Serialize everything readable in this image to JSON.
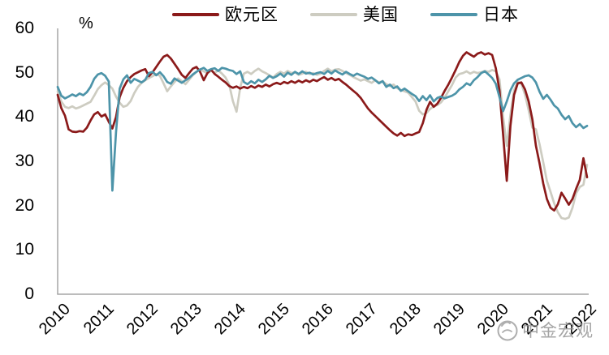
{
  "chart": {
    "unit_label": "%",
    "background": "#ffffff",
    "axis_color": "#a6a6a6"
  },
  "legend": {
    "items": [
      {
        "label": "欧元区",
        "color": "#8B1A1A"
      },
      {
        "label": "美国",
        "color": "#CDCCC1"
      },
      {
        "label": "日本",
        "color": "#4D94A9"
      }
    ]
  },
  "y_axis": {
    "unit": "%",
    "min": 0,
    "max": 60,
    "ticks": [
      "0",
      "10",
      "20",
      "30",
      "40",
      "50",
      "60"
    ]
  },
  "x_axis": {
    "ticks": [
      "2010",
      "2011",
      "2012",
      "2013",
      "2014",
      "2015",
      "2016",
      "2017",
      "2018",
      "2019",
      "2020",
      "2021",
      "2022"
    ]
  },
  "watermark": {
    "text": "中金宏观"
  },
  "chart_data": {
    "type": "line",
    "title": "",
    "xlabel": "",
    "ylabel": "%",
    "ylim": [
      0,
      60
    ],
    "grid": false,
    "legend_position": "top",
    "frequency": "monthly",
    "x_start": "2010-01",
    "x_end": "2022-02",
    "categories": [
      "2010",
      "2011",
      "2012",
      "2013",
      "2014",
      "2015",
      "2016",
      "2017",
      "2018",
      "2019",
      "2020",
      "2021",
      "2022"
    ],
    "series": [
      {
        "name": "欧元区",
        "color": "#8B1A1A",
        "values": [
          45.0,
          42.0,
          40.3,
          37.2,
          36.7,
          36.6,
          36.8,
          36.7,
          37.6,
          39.2,
          40.6,
          41.1,
          40.1,
          40.6,
          38.9,
          37.4,
          40.0,
          44.5,
          46.6,
          48.1,
          49.0,
          49.7,
          50.1,
          50.5,
          50.8,
          49.2,
          50.1,
          51.3,
          52.5,
          53.6,
          54.0,
          53.2,
          52.0,
          50.8,
          49.5,
          48.8,
          49.9,
          50.9,
          51.3,
          50.2,
          48.3,
          49.9,
          50.7,
          49.7,
          49.1,
          48.4,
          47.8,
          47.0,
          46.6,
          46.9,
          46.4,
          46.8,
          46.5,
          47.0,
          46.6,
          47.1,
          46.8,
          47.3,
          46.9,
          47.4,
          47.7,
          47.4,
          47.9,
          47.6,
          48.1,
          47.7,
          48.2,
          47.8,
          48.3,
          47.9,
          48.4,
          48.1,
          48.6,
          49.0,
          48.4,
          48.8,
          48.3,
          48.6,
          47.9,
          47.3,
          46.6,
          45.9,
          45.2,
          44.3,
          43.1,
          41.9,
          41.0,
          40.2,
          39.4,
          38.6,
          37.8,
          37.0,
          36.3,
          35.8,
          36.4,
          35.7,
          36.1,
          35.9,
          36.3,
          36.6,
          38.6,
          41.6,
          43.4,
          42.3,
          43.0,
          44.3,
          45.9,
          47.3,
          48.9,
          50.6,
          52.4,
          53.8,
          54.6,
          54.1,
          53.6,
          54.3,
          54.6,
          54.1,
          54.4,
          54.0,
          51.0,
          46.0,
          36.0,
          25.6,
          38.0,
          45.0,
          47.6,
          47.8,
          46.2,
          43.5,
          39.5,
          33.5,
          29.5,
          25.0,
          21.5,
          19.5,
          18.9,
          20.3,
          22.9,
          21.6,
          20.2,
          21.5,
          23.8,
          25.8,
          30.7,
          26.4
        ]
      },
      {
        "name": "美国",
        "color": "#CDCCC1",
        "values": [
          45.8,
          43.5,
          42.3,
          42.0,
          42.4,
          41.9,
          42.2,
          42.6,
          43.0,
          43.4,
          44.8,
          46.3,
          47.2,
          47.8,
          47.2,
          46.4,
          44.6,
          43.2,
          42.3,
          42.6,
          43.6,
          45.4,
          46.8,
          47.7,
          48.3,
          48.8,
          49.2,
          49.7,
          49.3,
          47.6,
          45.8,
          46.9,
          47.9,
          48.7,
          48.1,
          47.4,
          48.4,
          49.4,
          50.2,
          50.8,
          50.3,
          49.9,
          50.4,
          50.0,
          50.5,
          49.8,
          48.9,
          47.3,
          43.6,
          41.2,
          46.6,
          49.8,
          50.2,
          49.7,
          50.4,
          50.9,
          50.3,
          49.9,
          49.4,
          48.9,
          49.7,
          50.2,
          49.8,
          50.4,
          49.9,
          50.1,
          49.5,
          49.8,
          50.2,
          49.7,
          49.9,
          49.5,
          49.8,
          50.4,
          50.9,
          50.3,
          50.7,
          50.8,
          50.4,
          49.9,
          49.5,
          49.0,
          48.6,
          48.2,
          48.5,
          48.1,
          47.7,
          48.3,
          47.8,
          48.1,
          47.4,
          47.0,
          47.3,
          46.5,
          46.1,
          45.8,
          45.5,
          44.5,
          43.5,
          41.4,
          40.6,
          40.9,
          41.8,
          42.4,
          42.7,
          43.3,
          44.4,
          45.8,
          47.2,
          48.9,
          49.7,
          49.9,
          50.3,
          49.8,
          50.2,
          49.9,
          50.1,
          50.4,
          50.2,
          50.6,
          50.3,
          48.5,
          40.0,
          33.5,
          40.5,
          46.0,
          47.9,
          47.5,
          45.0,
          41.5,
          37.6,
          37.2,
          33.8,
          29.8,
          25.6,
          23.1,
          20.5,
          18.5,
          17.2,
          17.0,
          17.3,
          19.5,
          22.8,
          24.2,
          24.7,
          29.2
        ]
      },
      {
        "name": "日本",
        "color": "#4D94A9",
        "values": [
          46.8,
          44.8,
          44.2,
          44.6,
          45.1,
          44.7,
          45.3,
          44.9,
          45.6,
          46.8,
          48.6,
          49.6,
          49.9,
          49.3,
          48.0,
          23.4,
          36.6,
          46.4,
          48.5,
          49.4,
          47.7,
          48.6,
          48.2,
          47.8,
          48.4,
          49.9,
          50.2,
          49.4,
          50.1,
          49.2,
          47.9,
          47.5,
          48.7,
          48.2,
          47.7,
          48.3,
          48.8,
          49.6,
          50.2,
          50.7,
          51.1,
          50.4,
          50.8,
          51.0,
          50.4,
          51.1,
          50.9,
          50.6,
          50.4,
          49.7,
          50.3,
          47.9,
          47.4,
          48.1,
          47.6,
          48.4,
          47.9,
          48.5,
          49.3,
          48.8,
          49.2,
          49.8,
          49.1,
          50.0,
          49.5,
          50.2,
          49.7,
          50.3,
          49.8,
          50.0,
          49.6,
          49.9,
          50.1,
          49.7,
          50.4,
          49.8,
          50.5,
          50.0,
          49.6,
          50.2,
          49.7,
          49.3,
          49.8,
          49.4,
          49.1,
          48.6,
          48.9,
          48.3,
          47.6,
          48.1,
          46.8,
          47.3,
          46.5,
          46.9,
          45.9,
          46.4,
          45.8,
          45.2,
          44.7,
          43.6,
          44.7,
          43.8,
          44.9,
          43.5,
          44.3,
          44.6,
          44.2,
          44.5,
          44.8,
          45.3,
          46.2,
          46.8,
          47.6,
          47.2,
          48.3,
          49.0,
          49.9,
          50.3,
          49.6,
          48.8,
          47.5,
          44.5,
          41.3,
          43.5,
          46.0,
          47.6,
          48.4,
          48.8,
          49.2,
          49.4,
          48.9,
          47.8,
          45.7,
          44.1,
          45.0,
          43.9,
          42.6,
          41.9,
          40.5,
          39.5,
          40.2,
          38.6,
          37.7,
          38.4,
          37.5,
          38.0
        ]
      }
    ]
  }
}
